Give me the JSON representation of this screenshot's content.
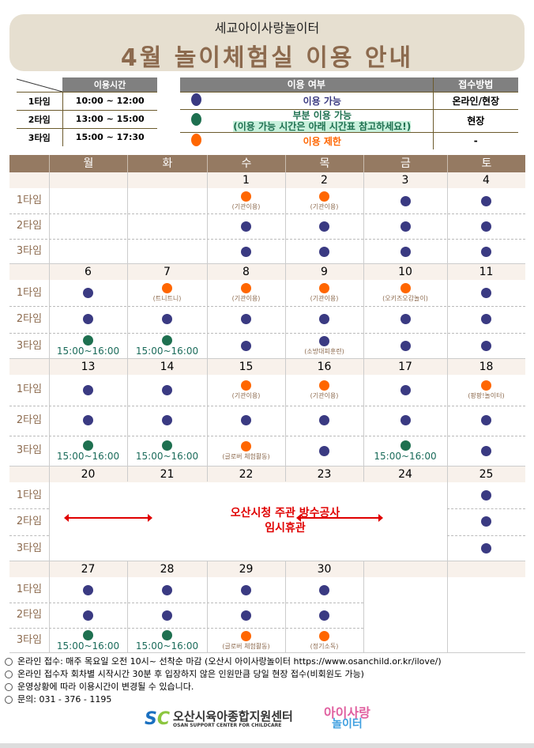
{
  "header": {
    "subtitle": "세교아이사랑놀이터",
    "title": "4월 놀이체험실 이용 안내"
  },
  "time_table": {
    "header": "이용시간",
    "rows": [
      {
        "label": "1타임",
        "time": "10:00 ~ 12:00"
      },
      {
        "label": "2타임",
        "time": "13:00 ~ 15:00"
      },
      {
        "label": "3타임",
        "time": "15:00 ~ 17:30"
      }
    ]
  },
  "legend": {
    "header_status": "이용 여부",
    "header_method": "접수방법",
    "rows": [
      {
        "status": "a",
        "label": "이용 가능",
        "method": "온라인/현장"
      },
      {
        "status": "p",
        "label": "부분 이용 가능",
        "sublabel": "(이용 가능 시간은 아래 시간표 참고하세요!)",
        "method": "현장"
      },
      {
        "status": "r",
        "label": "이용 제한",
        "method": "-"
      }
    ]
  },
  "colors": {
    "a": "#3a3a82",
    "p": "#1e7050",
    "r": "#ff6600",
    "header_bg": "#957a62",
    "banner_bg": "#e6dfd0"
  },
  "calendar": {
    "weekdays": [
      "월",
      "화",
      "수",
      "목",
      "금",
      "토"
    ],
    "slot_labels": [
      "1타임",
      "2타임",
      "3타임"
    ],
    "closure": {
      "line1": "오산시청 주관 방수공사",
      "line2": "임시휴관"
    },
    "weeks": [
      {
        "days": [
          {
            "date": "",
            "slots": []
          },
          {
            "date": "",
            "slots": []
          },
          {
            "date": "1",
            "slots": [
              {
                "s": "r",
                "note": "(기관이용)"
              },
              {
                "s": "a"
              },
              {
                "s": "a"
              }
            ]
          },
          {
            "date": "2",
            "slots": [
              {
                "s": "r",
                "note": "(기관이용)"
              },
              {
                "s": "a"
              },
              {
                "s": "a"
              }
            ]
          },
          {
            "date": "3",
            "slots": [
              {
                "s": "a"
              },
              {
                "s": "a"
              },
              {
                "s": "a"
              }
            ]
          },
          {
            "date": "4",
            "slots": [
              {
                "s": "a"
              },
              {
                "s": "a"
              },
              {
                "s": "a"
              }
            ]
          }
        ]
      },
      {
        "days": [
          {
            "date": "6",
            "slots": [
              {
                "s": "a"
              },
              {
                "s": "a"
              },
              {
                "s": "p",
                "hours": "15:00~16:00"
              }
            ]
          },
          {
            "date": "7",
            "slots": [
              {
                "s": "r",
                "note": "(트니트니)"
              },
              {
                "s": "a"
              },
              {
                "s": "p",
                "hours": "15:00~16:00"
              }
            ]
          },
          {
            "date": "8",
            "slots": [
              {
                "s": "r",
                "note": "(기관이용)"
              },
              {
                "s": "a"
              },
              {
                "s": "a"
              }
            ]
          },
          {
            "date": "9",
            "slots": [
              {
                "s": "r",
                "note": "(기관이용)"
              },
              {
                "s": "a"
              },
              {
                "s": "a",
                "note": "(소방대피훈련)"
              }
            ]
          },
          {
            "date": "10",
            "slots": [
              {
                "s": "r",
                "note": "(오키즈오감놀이)"
              },
              {
                "s": "a"
              },
              {
                "s": "a"
              }
            ]
          },
          {
            "date": "11",
            "slots": [
              {
                "s": "a"
              },
              {
                "s": "a"
              },
              {
                "s": "a"
              }
            ]
          }
        ]
      },
      {
        "days": [
          {
            "date": "13",
            "slots": [
              {
                "s": "a"
              },
              {
                "s": "a"
              },
              {
                "s": "p",
                "hours": "15:00~16:00"
              }
            ]
          },
          {
            "date": "14",
            "slots": [
              {
                "s": "a"
              },
              {
                "s": "a"
              },
              {
                "s": "p",
                "hours": "15:00~16:00"
              }
            ]
          },
          {
            "date": "15",
            "slots": [
              {
                "s": "r",
                "note": "(기관이용)"
              },
              {
                "s": "a"
              },
              {
                "s": "r",
                "note": "(글로버 체험활동)"
              }
            ]
          },
          {
            "date": "16",
            "slots": [
              {
                "s": "r",
                "note": "(기관이용)"
              },
              {
                "s": "a"
              },
              {
                "s": "a"
              }
            ]
          },
          {
            "date": "17",
            "slots": [
              {
                "s": "a"
              },
              {
                "s": "a"
              },
              {
                "s": "p",
                "hours": "15:00~16:00"
              }
            ]
          },
          {
            "date": "18",
            "slots": [
              {
                "s": "r",
                "note": "(팡팡!놀이터)"
              },
              {
                "s": "a"
              },
              {
                "s": "a"
              }
            ]
          }
        ]
      },
      {
        "closed": true,
        "days": [
          {
            "date": "20",
            "slots": []
          },
          {
            "date": "21",
            "slots": []
          },
          {
            "date": "22",
            "slots": []
          },
          {
            "date": "23",
            "slots": []
          },
          {
            "date": "24",
            "slots": []
          },
          {
            "date": "25",
            "slots": [
              {
                "s": "a"
              },
              {
                "s": "a"
              },
              {
                "s": "a"
              }
            ]
          }
        ]
      },
      {
        "days": [
          {
            "date": "27",
            "slots": [
              {
                "s": "a"
              },
              {
                "s": "a"
              },
              {
                "s": "p",
                "hours": "15:00~16:00"
              }
            ]
          },
          {
            "date": "28",
            "slots": [
              {
                "s": "a"
              },
              {
                "s": "a"
              },
              {
                "s": "p",
                "hours": "15:00~16:00"
              }
            ]
          },
          {
            "date": "29",
            "slots": [
              {
                "s": "a"
              },
              {
                "s": "a"
              },
              {
                "s": "r",
                "note": "(글로버 체험활동)"
              }
            ]
          },
          {
            "date": "30",
            "slots": [
              {
                "s": "a"
              },
              {
                "s": "a"
              },
              {
                "s": "r",
                "note": "(정기소독)"
              }
            ]
          },
          {
            "date": "",
            "slots": []
          },
          {
            "date": "",
            "slots": []
          }
        ]
      }
    ]
  },
  "notes": [
    "온라인 접수: 매주 목요일 오전 10시~ 선착순 마감 (오산시 아이사랑놀이터 https://www.osanchild.or.kr/ilove/)",
    "온라인 접수자 회차별 시작시간 30분 후 입장하지 않은 인원만큼 당일 현장 접수(비회원도 가능)",
    "운영상황에 따라 이용시간이 변경될 수 있습니다.",
    "문의: 031 - 376 - 1195"
  ],
  "footer": {
    "org_name": "오산시육아종합지원센터",
    "org_name_en": "OSAN SUPPORT CENTER FOR CHILDCARE",
    "org_mark": "SC",
    "brand_line1": "아이사랑",
    "brand_line2": "놀이터"
  }
}
